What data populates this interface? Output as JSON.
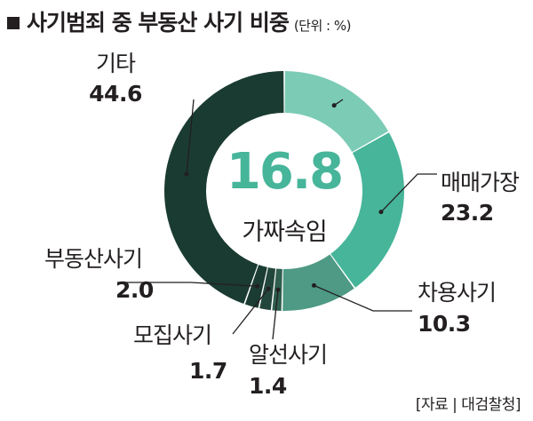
{
  "title": "사기범죄 중 부동산 사기 비중",
  "unit": "(단위 : %)",
  "source": "[자료 | 대검찰청]",
  "center": {
    "value": "16.8",
    "label": "가짜속임"
  },
  "chart_data": {
    "type": "pie",
    "title": "사기범죄 중 부동산 사기 비중",
    "unit": "%",
    "center_value": 16.8,
    "center_label": "가짜속임",
    "slices": [
      {
        "label": "가짜속임",
        "value": 16.8,
        "color": "#7ccbb5"
      },
      {
        "label": "매매가장",
        "value": 23.2,
        "color": "#47b59a"
      },
      {
        "label": "차용사기",
        "value": 10.3,
        "color": "#4e9a84"
      },
      {
        "label": "알선사기",
        "value": 1.4,
        "color": "#2f5e4f"
      },
      {
        "label": "모집사기",
        "value": 1.7,
        "color": "#23463c"
      },
      {
        "label": "부동산사기",
        "value": 2.0,
        "color": "#1b3c32"
      },
      {
        "label": "기타",
        "value": 44.6,
        "color": "#1a3b31"
      }
    ]
  }
}
